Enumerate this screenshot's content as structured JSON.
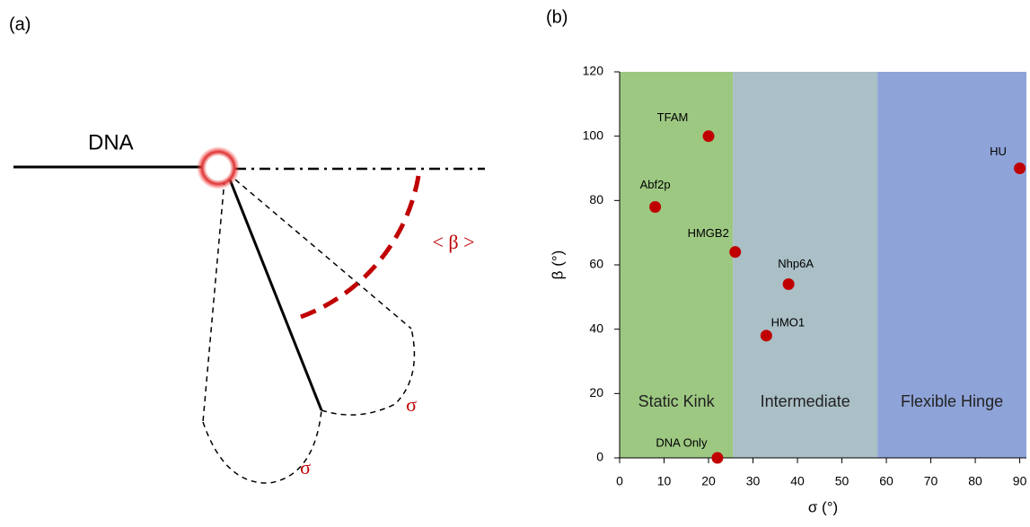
{
  "diagram": {
    "panel_label": "(a)",
    "dna_label": "DNA",
    "beta_label": "< β >",
    "sigma_labels": [
      "σ",
      "σ"
    ]
  },
  "chart_data": {
    "type": "scatter",
    "panel_label": "(b)",
    "x_label": "σ (°)",
    "y_label": "β (°)",
    "xlim": [
      0,
      91.5
    ],
    "ylim": [
      0,
      120
    ],
    "xticks": [
      0,
      10,
      20,
      30,
      40,
      50,
      60,
      70,
      80,
      90
    ],
    "yticks": [
      0,
      20,
      40,
      60,
      80,
      100,
      120
    ],
    "regions": [
      {
        "name": "Static Kink",
        "range": [
          0,
          25.5
        ],
        "color": "#9dc882"
      },
      {
        "name": "Intermediate",
        "range": [
          25.5,
          58
        ],
        "color": "#aabfc6"
      },
      {
        "name": "Flexible Hinge",
        "range": [
          58,
          91.5
        ],
        "color": "#8ea3d8"
      }
    ],
    "series": [
      {
        "color": "#c00000",
        "labels": [
          "TFAM",
          "Abf2p",
          "HMGB2",
          "Nhp6A",
          "HMO1",
          "DNA Only",
          "HU"
        ],
        "x": [
          20,
          8,
          26,
          38,
          33,
          22,
          90
        ],
        "values": [
          100,
          78,
          64,
          54,
          38,
          0,
          90
        ]
      }
    ]
  }
}
